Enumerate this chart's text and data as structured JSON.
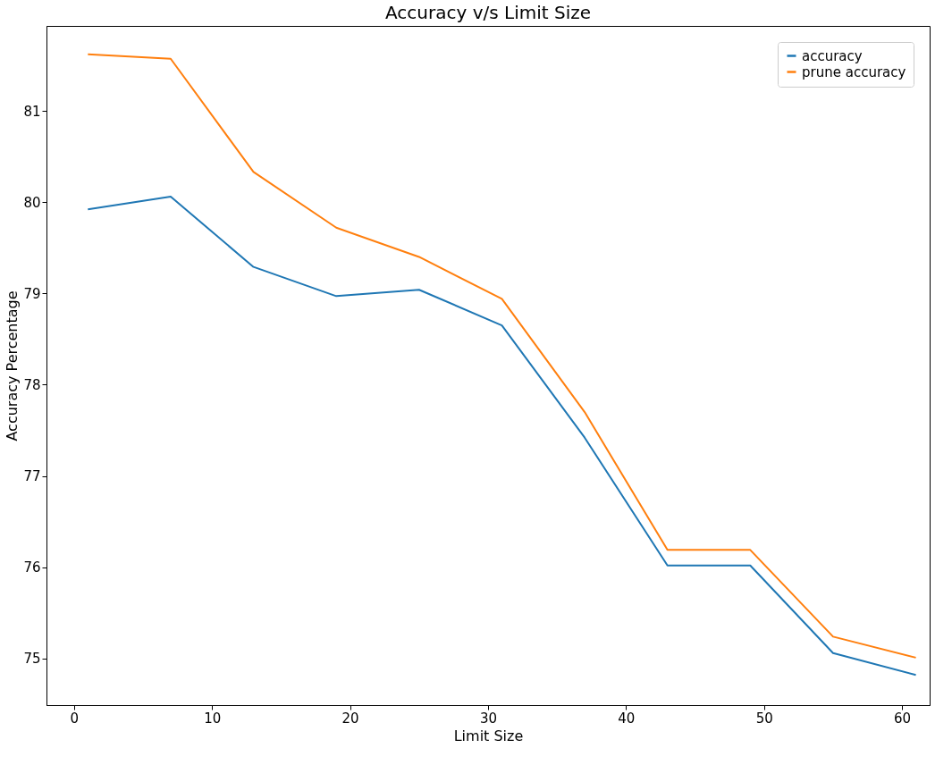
{
  "chart_data": {
    "type": "line",
    "title": "Accuracy v/s Limit Size",
    "xlabel": "Limit Size",
    "ylabel": "Accuracy Percentage",
    "x": [
      1,
      7,
      13,
      19,
      25,
      31,
      37,
      43,
      49,
      55,
      61
    ],
    "series": [
      {
        "name": "accuracy",
        "color": "#1f77b4",
        "values": [
          79.92,
          80.06,
          79.29,
          78.97,
          79.04,
          78.65,
          77.42,
          76.02,
          76.02,
          75.06,
          74.82
        ]
      },
      {
        "name": "prune accuracy",
        "color": "#ff7f0e",
        "values": [
          81.62,
          81.57,
          80.33,
          79.72,
          79.4,
          78.94,
          77.7,
          76.19,
          76.19,
          75.24,
          75.01
        ]
      }
    ],
    "xlim": [
      -2,
      62
    ],
    "ylim": [
      74.49,
      81.93
    ],
    "xticks": [
      0,
      10,
      20,
      30,
      40,
      50,
      60
    ],
    "yticks": [
      75,
      76,
      77,
      78,
      79,
      80,
      81
    ],
    "legend": "top right",
    "grid": false,
    "marker": "none",
    "line_style": "solid"
  }
}
